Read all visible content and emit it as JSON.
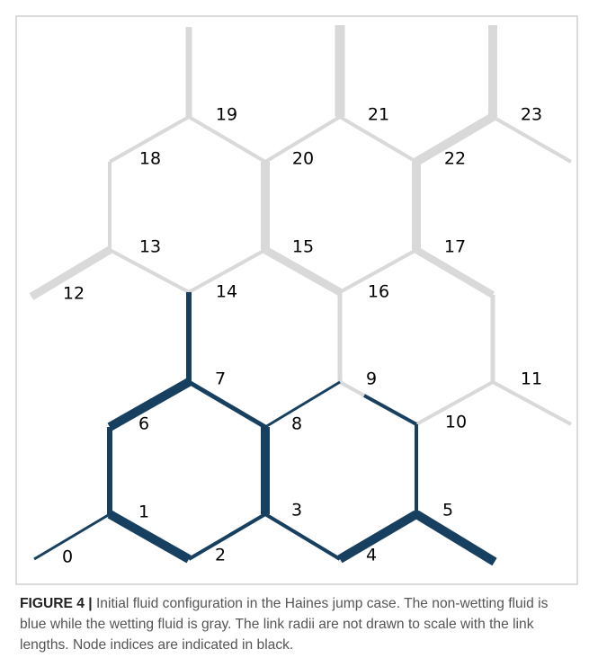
{
  "figure": {
    "label": "FIGURE 4 |",
    "caption": "Initial fluid configuration in the Haines jump case. The non-wetting fluid is blue while the wetting fluid is gray. The link radii are not drawn to scale with the link lengths. Node indices are indicated in black."
  },
  "nodes": [
    {
      "label": "0"
    },
    {
      "label": "1"
    },
    {
      "label": "2"
    },
    {
      "label": "3"
    },
    {
      "label": "4"
    },
    {
      "label": "5"
    },
    {
      "label": "6"
    },
    {
      "label": "7"
    },
    {
      "label": "8"
    },
    {
      "label": "9"
    },
    {
      "label": "10"
    },
    {
      "label": "11"
    },
    {
      "label": "12"
    },
    {
      "label": "13"
    },
    {
      "label": "14"
    },
    {
      "label": "15"
    },
    {
      "label": "16"
    },
    {
      "label": "17"
    },
    {
      "label": "18"
    },
    {
      "label": "19"
    },
    {
      "label": "20"
    },
    {
      "label": "21"
    },
    {
      "label": "22"
    },
    {
      "label": "23"
    }
  ]
}
